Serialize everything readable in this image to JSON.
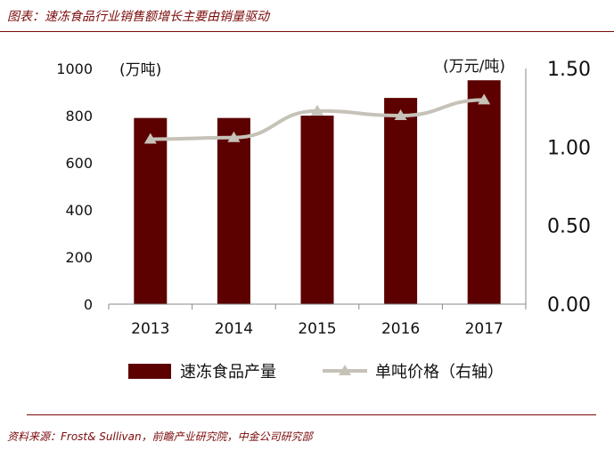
{
  "header": {
    "title": "图表：速冻食品行业销售额增长主要由销量驱动"
  },
  "footer": {
    "source": "资料来源：Frost& Sullivan，前瞻产业研究院，中金公司研究部"
  },
  "chart_data": {
    "type": "bar",
    "categories": [
      "2013",
      "2014",
      "2015",
      "2016",
      "2017"
    ],
    "series": [
      {
        "name": "速冻食品产量",
        "type": "bar",
        "axis": "left",
        "values": [
          790,
          790,
          800,
          875,
          950
        ],
        "color": "#5c0000"
      },
      {
        "name": "单吨价格（右轴）",
        "type": "line",
        "axis": "right",
        "values": [
          1.05,
          1.06,
          1.23,
          1.2,
          1.3
        ],
        "color": "#c6c2b8"
      }
    ],
    "left_axis": {
      "unit_label": "(万吨)",
      "ylim": [
        0,
        1000
      ],
      "ticks": [
        "0",
        "200",
        "400",
        "600",
        "800",
        "1000"
      ]
    },
    "right_axis": {
      "unit_label": "(万元/吨)",
      "ylim": [
        0,
        1.5
      ],
      "ticks": [
        "0.00",
        "0.50",
        "1.00",
        "1.50"
      ]
    },
    "grid": false,
    "legend_position": "bottom"
  }
}
